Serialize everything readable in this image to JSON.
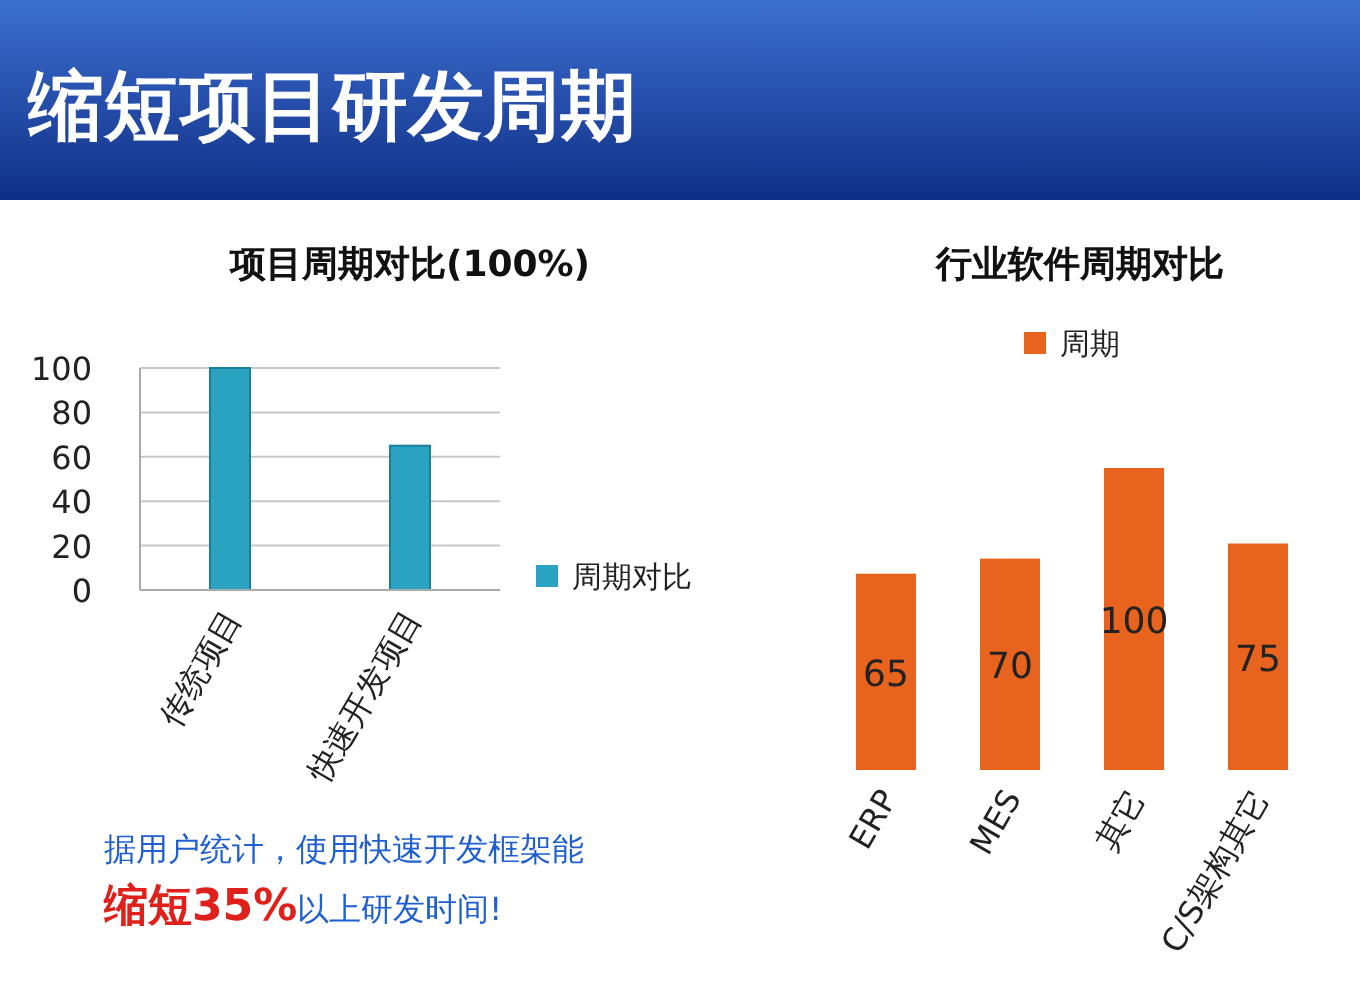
{
  "chart_data": [
    {
      "type": "bar",
      "title": "项目周期对比(100%)",
      "categories": [
        "传统项目",
        "快速开发项目"
      ],
      "series": [
        {
          "name": "周期对比",
          "color": "#2aa3c2",
          "values": [
            100,
            65
          ]
        }
      ],
      "ylim": [
        0,
        100
      ],
      "yticks": [
        0,
        20,
        40,
        60,
        80,
        100
      ],
      "grid": "y",
      "legend": "right",
      "annotations": [
        "缩短项目研发周期",
        "据用户统计，使用快速开发框架能",
        "缩短35%",
        "以上研发时间!"
      ]
    },
    {
      "type": "bar",
      "title": "行业软件周期对比",
      "categories": [
        "ERP",
        "MES",
        "其它",
        "C/S架构其它"
      ],
      "series": [
        {
          "name": "周期",
          "color": "#e8641e",
          "values": [
            65,
            70,
            100,
            75
          ]
        }
      ],
      "data_labels": true,
      "legend": "top",
      "tick_labels": "x"
    }
  ]
}
